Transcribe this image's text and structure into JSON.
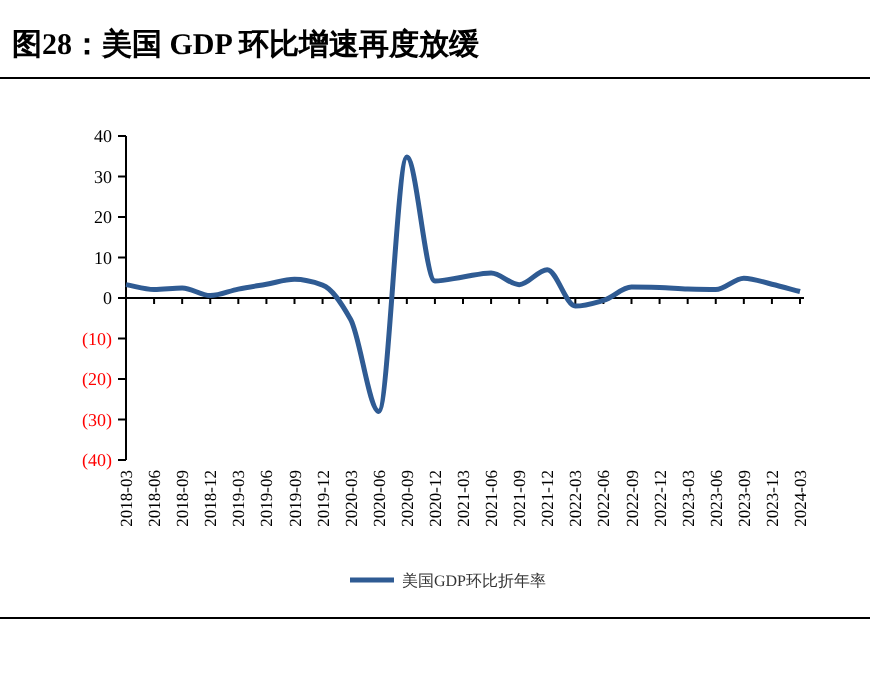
{
  "chart_data": {
    "type": "line",
    "title": "图28：美国 GDP 环比增速再度放缓",
    "categories": [
      "2018-03",
      "2018-06",
      "2018-09",
      "2018-12",
      "2019-03",
      "2019-06",
      "2019-09",
      "2019-12",
      "2020-03",
      "2020-06",
      "2020-09",
      "2020-12",
      "2021-03",
      "2021-06",
      "2021-09",
      "2021-12",
      "2022-03",
      "2022-06",
      "2022-09",
      "2022-12",
      "2023-03",
      "2023-06",
      "2023-09",
      "2023-12",
      "2024-03"
    ],
    "series": [
      {
        "name": "美国GDP环比折年率",
        "color": "#2f5b93",
        "values": [
          3.3,
          2.1,
          2.5,
          0.6,
          2.2,
          3.4,
          4.6,
          3.2,
          -5.3,
          -28.0,
          34.8,
          4.2,
          5.2,
          6.2,
          3.3,
          7.0,
          -2.0,
          -0.6,
          2.7,
          2.6,
          2.2,
          2.1,
          4.9,
          3.4,
          1.6
        ]
      }
    ],
    "ylim": [
      -40,
      40
    ],
    "yticks": [
      {
        "value": -40,
        "label": "(40)"
      },
      {
        "value": -30,
        "label": "(30)"
      },
      {
        "value": -20,
        "label": "(20)"
      },
      {
        "value": -10,
        "label": "(10)"
      },
      0,
      10,
      20,
      30,
      40
    ],
    "legend": "bottom",
    "marker": "none",
    "line_style": "solid"
  }
}
